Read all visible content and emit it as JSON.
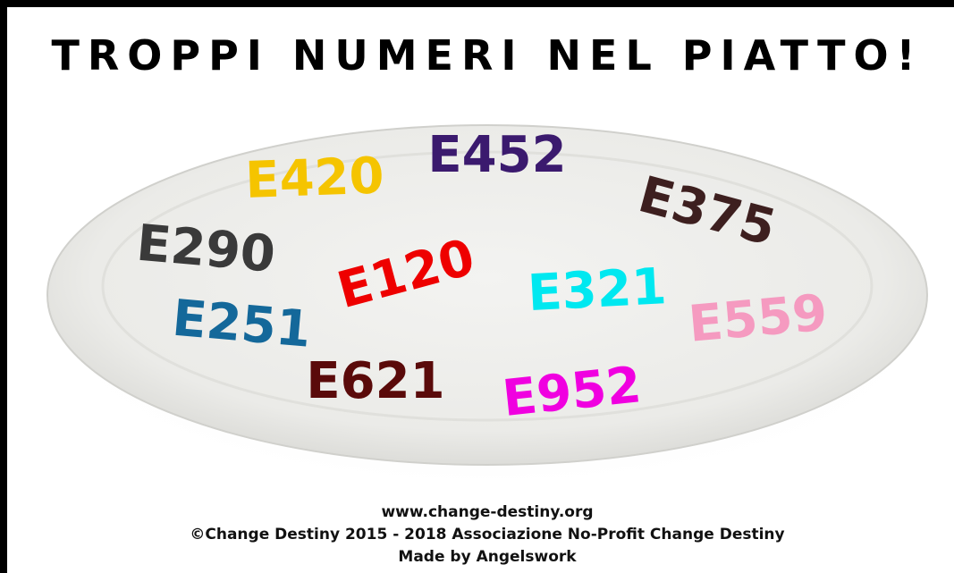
{
  "header": {
    "title": "TROPPI NUMERI NEL PIATTO!"
  },
  "codes": [
    {
      "text": "E420",
      "color": "#f5c400"
    },
    {
      "text": "E452",
      "color": "#3b1a6e"
    },
    {
      "text": "E375",
      "color": "#3d1f1f"
    },
    {
      "text": "E290",
      "color": "#3a3a3a"
    },
    {
      "text": "E120",
      "color": "#ee0000"
    },
    {
      "text": "E321",
      "color": "#00e8f0"
    },
    {
      "text": "E251",
      "color": "#14689a"
    },
    {
      "text": "E559",
      "color": "#f59ac0"
    },
    {
      "text": "E621",
      "color": "#5a0a0a"
    },
    {
      "text": "E952",
      "color": "#f000e0"
    }
  ],
  "footer": {
    "lines": [
      "www.change-destiny.org",
      "©Change Destiny 2015 - 2018  Associazione No-Profit Change Destiny",
      "Made by Angelswork"
    ]
  }
}
